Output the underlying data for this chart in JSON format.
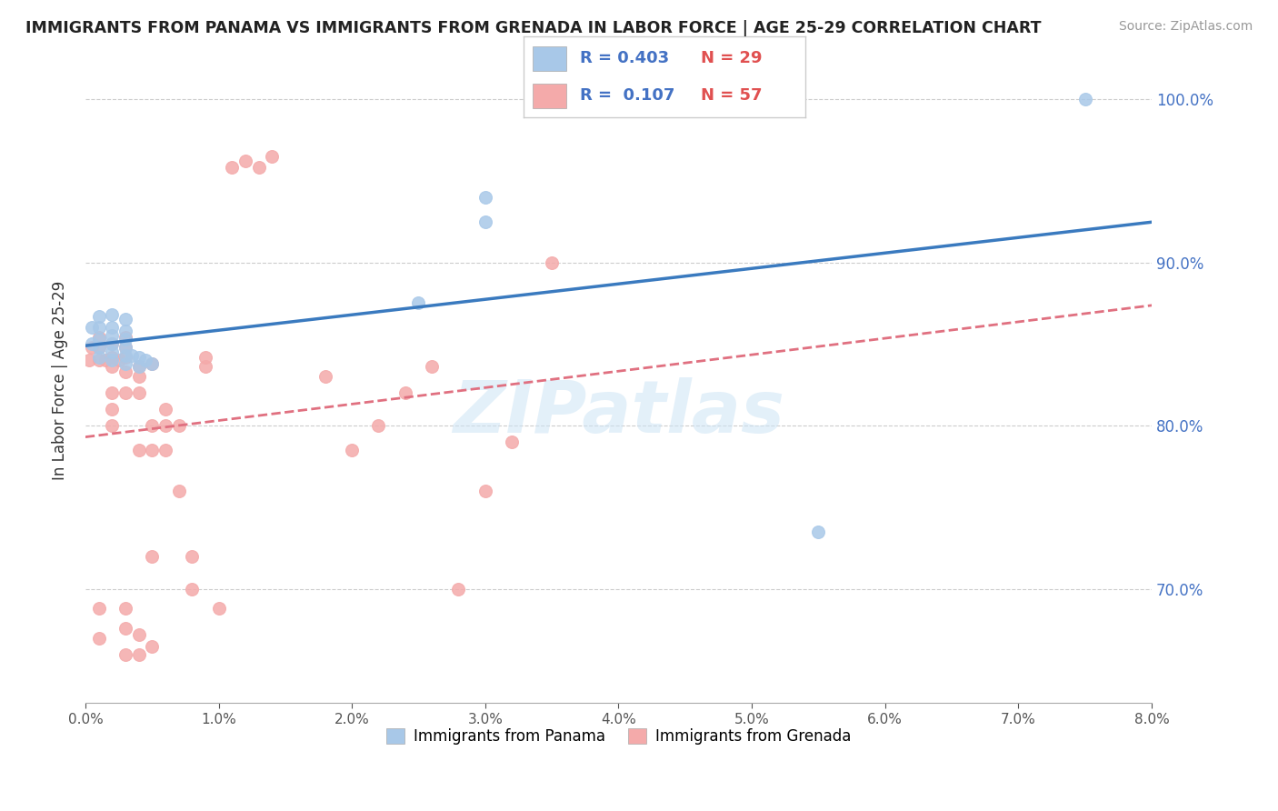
{
  "title": "IMMIGRANTS FROM PANAMA VS IMMIGRANTS FROM GRENADA IN LABOR FORCE | AGE 25-29 CORRELATION CHART",
  "source": "Source: ZipAtlas.com",
  "ylabel": "In Labor Force | Age 25-29",
  "x_min": 0.0,
  "x_max": 0.08,
  "y_min": 0.63,
  "y_max": 1.025,
  "x_ticks": [
    0.0,
    0.01,
    0.02,
    0.03,
    0.04,
    0.05,
    0.06,
    0.07,
    0.08
  ],
  "x_tick_labels": [
    "0.0%",
    "1.0%",
    "2.0%",
    "3.0%",
    "4.0%",
    "5.0%",
    "6.0%",
    "7.0%",
    "8.0%"
  ],
  "y_ticks": [
    0.7,
    0.8,
    0.9,
    1.0
  ],
  "y_tick_labels": [
    "70.0%",
    "80.0%",
    "90.0%",
    "100.0%"
  ],
  "panama_color": "#a8c8e8",
  "grenada_color": "#f4aaaa",
  "panama_line_color": "#3a7abf",
  "grenada_line_color": "#e07080",
  "panama_R": 0.403,
  "panama_N": 29,
  "grenada_R": 0.107,
  "grenada_N": 57,
  "watermark_text": "ZIPatlas",
  "panama_x": [
    0.0005,
    0.0005,
    0.001,
    0.001,
    0.001,
    0.001,
    0.001,
    0.002,
    0.002,
    0.002,
    0.002,
    0.002,
    0.002,
    0.003,
    0.003,
    0.003,
    0.003,
    0.003,
    0.003,
    0.0035,
    0.004,
    0.004,
    0.0045,
    0.005,
    0.025,
    0.03,
    0.03,
    0.055,
    0.075
  ],
  "panama_y": [
    0.85,
    0.86,
    0.842,
    0.848,
    0.853,
    0.86,
    0.867,
    0.84,
    0.845,
    0.85,
    0.855,
    0.86,
    0.868,
    0.838,
    0.843,
    0.848,
    0.853,
    0.858,
    0.865,
    0.843,
    0.836,
    0.842,
    0.84,
    0.838,
    0.875,
    0.925,
    0.94,
    0.735,
    1.0
  ],
  "grenada_x": [
    0.0003,
    0.0005,
    0.001,
    0.001,
    0.001,
    0.001,
    0.001,
    0.0015,
    0.002,
    0.002,
    0.002,
    0.002,
    0.002,
    0.002,
    0.0025,
    0.003,
    0.003,
    0.003,
    0.003,
    0.003,
    0.003,
    0.003,
    0.003,
    0.004,
    0.004,
    0.004,
    0.004,
    0.004,
    0.004,
    0.005,
    0.005,
    0.005,
    0.005,
    0.005,
    0.006,
    0.006,
    0.006,
    0.007,
    0.007,
    0.008,
    0.008,
    0.009,
    0.009,
    0.01,
    0.011,
    0.012,
    0.013,
    0.014,
    0.018,
    0.02,
    0.022,
    0.024,
    0.026,
    0.028,
    0.03,
    0.032,
    0.035
  ],
  "grenada_y": [
    0.84,
    0.848,
    0.67,
    0.688,
    0.84,
    0.848,
    0.854,
    0.84,
    0.8,
    0.81,
    0.82,
    0.836,
    0.842,
    0.85,
    0.84,
    0.66,
    0.676,
    0.688,
    0.82,
    0.833,
    0.842,
    0.848,
    0.854,
    0.66,
    0.672,
    0.785,
    0.82,
    0.83,
    0.836,
    0.665,
    0.72,
    0.785,
    0.8,
    0.838,
    0.785,
    0.8,
    0.81,
    0.76,
    0.8,
    0.7,
    0.72,
    0.836,
    0.842,
    0.688,
    0.958,
    0.962,
    0.958,
    0.965,
    0.83,
    0.785,
    0.8,
    0.82,
    0.836,
    0.7,
    0.76,
    0.79,
    0.9
  ]
}
